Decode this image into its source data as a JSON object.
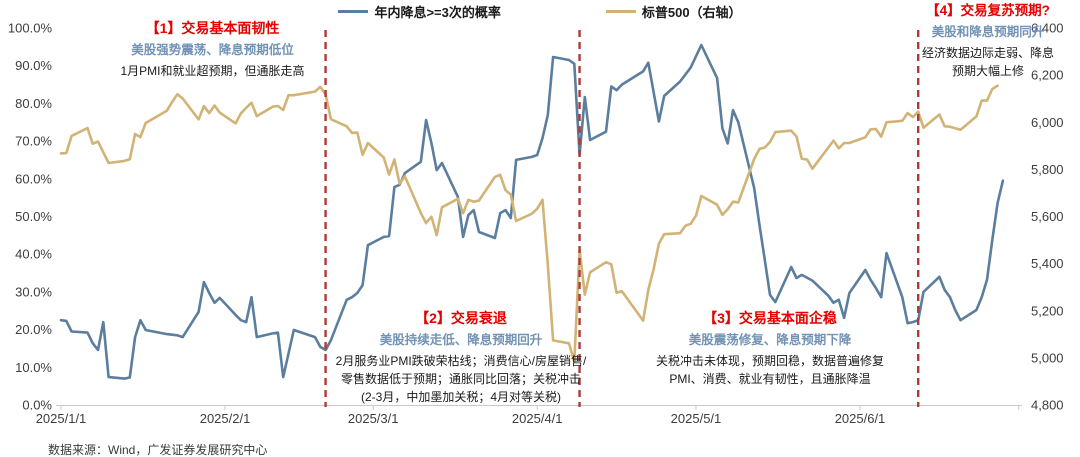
{
  "page": {
    "footer": "数据来源：Wind，广发证券发展研究中心"
  },
  "legend": {
    "items": [
      {
        "label": "年内降息>=3次的概率",
        "color": "#5B7E9E"
      },
      {
        "label": "标普500（右轴）",
        "color": "#D2B376"
      }
    ]
  },
  "annotations": [
    {
      "title": "【1】交易基本面韧性",
      "subtitle": "美股强势震荡、降息预期低位",
      "body": "1月PMI和就业超预期，但通胀走高"
    },
    {
      "title": "【2】交易衰退",
      "subtitle": "美股持续走低、降息预期回升",
      "body": "2月服务业PMI跌破荣枯线；消费信心/房屋销售/\n零售数据低于预期；通胀同比回落；关税冲击\n(2-3月，中加墨加关税；4月对等关税)"
    },
    {
      "title": "【3】交易基本面企稳",
      "subtitle": "美股震荡修复、降息预期下降",
      "body": "关税冲击未体现，预期回稳，数据普遍修复\nPMI、消费、就业有韧性，且通胀降温"
    },
    {
      "title": "【4】交易复苏预期?",
      "subtitle": "美股和降息预期同升",
      "body": "经济数据边际走弱、降息\n预期大幅上修"
    }
  ],
  "chart_data": {
    "type": "line",
    "grid": false,
    "legend_position": "top-center",
    "x_axis": {
      "ticks": [
        {
          "label": "2025/1/1",
          "date": "2025-01-01"
        },
        {
          "label": "2025/2/1",
          "date": "2025-02-01"
        },
        {
          "label": "2025/3/1",
          "date": "2025-03-01"
        },
        {
          "label": "2025/4/1",
          "date": "2025-04-01"
        },
        {
          "label": "2025/5/1",
          "date": "2025-05-01"
        },
        {
          "label": "2025/6/1",
          "date": "2025-06-01"
        }
      ],
      "range_days": [
        0,
        181
      ]
    },
    "y_left": {
      "ticks": [
        "0.0%",
        "10.0%",
        "20.0%",
        "30.0%",
        "40.0%",
        "50.0%",
        "60.0%",
        "70.0%",
        "80.0%",
        "90.0%",
        "100.0%"
      ],
      "min": 0,
      "max": 100
    },
    "y_right": {
      "ticks": [
        "4,800",
        "5,000",
        "5,200",
        "5,400",
        "5,600",
        "5,800",
        "6,000",
        "6,200",
        "6,400"
      ],
      "min": 4800,
      "max": 6400
    },
    "phase_dividers": {
      "color": "#B03A35",
      "dates": [
        "2025-02-20",
        "2025-04-09",
        "2025-06-12"
      ]
    },
    "series": [
      {
        "name": "年内降息>=3次的概率",
        "axis": "left",
        "color": "#5B7E9E",
        "points": [
          [
            "2025-01-01",
            22.5
          ],
          [
            "2025-01-02",
            22.3
          ],
          [
            "2025-01-03",
            19.5
          ],
          [
            "2025-01-06",
            19.2
          ],
          [
            "2025-01-07",
            16.4
          ],
          [
            "2025-01-08",
            14.6
          ],
          [
            "2025-01-09",
            22.0
          ],
          [
            "2025-01-10",
            7.4
          ],
          [
            "2025-01-13",
            7.0
          ],
          [
            "2025-01-14",
            7.3
          ],
          [
            "2025-01-15",
            18.0
          ],
          [
            "2025-01-16",
            22.5
          ],
          [
            "2025-01-17",
            19.9
          ],
          [
            "2025-01-21",
            18.8
          ],
          [
            "2025-01-23",
            18.5
          ],
          [
            "2025-01-24",
            18.0
          ],
          [
            "2025-01-27",
            24.7
          ],
          [
            "2025-01-28",
            32.6
          ],
          [
            "2025-01-29",
            29.7
          ],
          [
            "2025-01-30",
            27.1
          ],
          [
            "2025-01-31",
            28.4
          ],
          [
            "2025-02-03",
            23.9
          ],
          [
            "2025-02-04",
            22.5
          ],
          [
            "2025-02-05",
            22.0
          ],
          [
            "2025-02-06",
            28.6
          ],
          [
            "2025-02-07",
            18.0
          ],
          [
            "2025-02-10",
            19.0
          ],
          [
            "2025-02-11",
            19.2
          ],
          [
            "2025-02-12",
            7.4
          ],
          [
            "2025-02-14",
            19.9
          ],
          [
            "2025-02-18",
            18.0
          ],
          [
            "2025-02-19",
            15.4
          ],
          [
            "2025-02-20",
            14.6
          ],
          [
            "2025-02-21",
            17.2
          ],
          [
            "2025-02-24",
            27.9
          ],
          [
            "2025-02-25",
            28.6
          ],
          [
            "2025-02-26",
            29.7
          ],
          [
            "2025-02-27",
            31.8
          ],
          [
            "2025-02-28",
            42.4
          ],
          [
            "2025-03-03",
            44.6
          ],
          [
            "2025-03-04",
            44.8
          ],
          [
            "2025-03-05",
            57.8
          ],
          [
            "2025-03-06",
            58.4
          ],
          [
            "2025-03-07",
            61.5
          ],
          [
            "2025-03-10",
            64.5
          ],
          [
            "2025-03-11",
            75.6
          ],
          [
            "2025-03-12",
            69.5
          ],
          [
            "2025-03-13",
            62.3
          ],
          [
            "2025-03-14",
            64.2
          ],
          [
            "2025-03-17",
            55.2
          ],
          [
            "2025-03-18",
            44.6
          ],
          [
            "2025-03-19",
            50.4
          ],
          [
            "2025-03-20",
            51.7
          ],
          [
            "2025-03-21",
            45.9
          ],
          [
            "2025-03-24",
            44.3
          ],
          [
            "2025-03-25",
            50.9
          ],
          [
            "2025-03-26",
            51.7
          ],
          [
            "2025-03-27",
            49.6
          ],
          [
            "2025-03-28",
            65.0
          ],
          [
            "2025-03-31",
            65.8
          ],
          [
            "2025-04-01",
            66.3
          ],
          [
            "2025-04-02",
            70.8
          ],
          [
            "2025-04-03",
            76.9
          ],
          [
            "2025-04-04",
            92.3
          ],
          [
            "2025-04-07",
            91.5
          ],
          [
            "2025-04-08",
            90.5
          ],
          [
            "2025-04-09",
            66.3
          ],
          [
            "2025-04-10",
            81.7
          ],
          [
            "2025-04-11",
            70.3
          ],
          [
            "2025-04-14",
            72.5
          ],
          [
            "2025-04-15",
            84.5
          ],
          [
            "2025-04-16",
            83.5
          ],
          [
            "2025-04-17",
            85.0
          ],
          [
            "2025-04-21",
            88.5
          ],
          [
            "2025-04-22",
            90.8
          ],
          [
            "2025-04-24",
            75.2
          ],
          [
            "2025-04-25",
            82.0
          ],
          [
            "2025-04-28",
            85.8
          ],
          [
            "2025-04-30",
            89.5
          ],
          [
            "2025-05-02",
            95.5
          ],
          [
            "2025-05-05",
            86.7
          ],
          [
            "2025-05-06",
            73.4
          ],
          [
            "2025-05-07",
            69.4
          ],
          [
            "2025-05-08",
            78.2
          ],
          [
            "2025-05-09",
            75.0
          ],
          [
            "2025-05-12",
            57.5
          ],
          [
            "2025-05-13",
            47.7
          ],
          [
            "2025-05-14",
            38.5
          ],
          [
            "2025-05-15",
            29.2
          ],
          [
            "2025-05-16",
            27.3
          ],
          [
            "2025-05-19",
            36.6
          ],
          [
            "2025-05-20",
            33.7
          ],
          [
            "2025-05-21",
            34.5
          ],
          [
            "2025-05-23",
            33.0
          ],
          [
            "2025-05-26",
            29.0
          ],
          [
            "2025-05-27",
            27.1
          ],
          [
            "2025-05-28",
            27.9
          ],
          [
            "2025-05-29",
            23.1
          ],
          [
            "2025-05-30",
            29.7
          ],
          [
            "2025-06-02",
            35.8
          ],
          [
            "2025-06-03",
            33.2
          ],
          [
            "2025-06-04",
            31.0
          ],
          [
            "2025-06-05",
            28.6
          ],
          [
            "2025-06-06",
            40.3
          ],
          [
            "2025-06-09",
            28.6
          ],
          [
            "2025-06-10",
            21.7
          ],
          [
            "2025-06-11",
            22.0
          ],
          [
            "2025-06-12",
            22.5
          ],
          [
            "2025-06-13",
            30.0
          ],
          [
            "2025-06-16",
            34.0
          ],
          [
            "2025-06-17",
            30.5
          ],
          [
            "2025-06-18",
            28.6
          ],
          [
            "2025-06-19",
            25.2
          ],
          [
            "2025-06-20",
            22.5
          ],
          [
            "2025-06-23",
            25.2
          ],
          [
            "2025-06-24",
            28.6
          ],
          [
            "2025-06-25",
            33.2
          ],
          [
            "2025-06-26",
            43.8
          ],
          [
            "2025-06-27",
            53.6
          ],
          [
            "2025-06-28",
            59.5
          ]
        ]
      },
      {
        "name": "标普500（右轴）",
        "axis": "right",
        "color": "#D2B376",
        "points": [
          [
            "2025-01-01",
            5868
          ],
          [
            "2025-01-02",
            5869
          ],
          [
            "2025-01-03",
            5942
          ],
          [
            "2025-01-06",
            5975
          ],
          [
            "2025-01-07",
            5909
          ],
          [
            "2025-01-08",
            5918
          ],
          [
            "2025-01-10",
            5827
          ],
          [
            "2025-01-13",
            5836
          ],
          [
            "2025-01-14",
            5843
          ],
          [
            "2025-01-15",
            5950
          ],
          [
            "2025-01-16",
            5937
          ],
          [
            "2025-01-17",
            5997
          ],
          [
            "2025-01-21",
            6049
          ],
          [
            "2025-01-22",
            6086
          ],
          [
            "2025-01-23",
            6119
          ],
          [
            "2025-01-24",
            6101
          ],
          [
            "2025-01-27",
            6012
          ],
          [
            "2025-01-28",
            6068
          ],
          [
            "2025-01-29",
            6039
          ],
          [
            "2025-01-30",
            6071
          ],
          [
            "2025-01-31",
            6041
          ],
          [
            "2025-02-03",
            5995
          ],
          [
            "2025-02-04",
            6038
          ],
          [
            "2025-02-05",
            6061
          ],
          [
            "2025-02-06",
            6083
          ],
          [
            "2025-02-07",
            6026
          ],
          [
            "2025-02-10",
            6066
          ],
          [
            "2025-02-11",
            6069
          ],
          [
            "2025-02-12",
            6052
          ],
          [
            "2025-02-13",
            6115
          ],
          [
            "2025-02-14",
            6115
          ],
          [
            "2025-02-18",
            6130
          ],
          [
            "2025-02-19",
            6150
          ],
          [
            "2025-02-20",
            6118
          ],
          [
            "2025-02-21",
            6013
          ],
          [
            "2025-02-24",
            5983
          ],
          [
            "2025-02-25",
            5955
          ],
          [
            "2025-02-26",
            5956
          ],
          [
            "2025-02-27",
            5862
          ],
          [
            "2025-02-28",
            5912
          ],
          [
            "2025-03-03",
            5850
          ],
          [
            "2025-03-04",
            5778
          ],
          [
            "2025-03-05",
            5842
          ],
          [
            "2025-03-06",
            5739
          ],
          [
            "2025-03-07",
            5770
          ],
          [
            "2025-03-10",
            5615
          ],
          [
            "2025-03-11",
            5572
          ],
          [
            "2025-03-12",
            5599
          ],
          [
            "2025-03-13",
            5521
          ],
          [
            "2025-03-14",
            5639
          ],
          [
            "2025-03-17",
            5675
          ],
          [
            "2025-03-18",
            5614
          ],
          [
            "2025-03-19",
            5671
          ],
          [
            "2025-03-20",
            5663
          ],
          [
            "2025-03-21",
            5668
          ],
          [
            "2025-03-24",
            5768
          ],
          [
            "2025-03-25",
            5777
          ],
          [
            "2025-03-26",
            5712
          ],
          [
            "2025-03-27",
            5693
          ],
          [
            "2025-03-28",
            5581
          ],
          [
            "2025-03-31",
            5612
          ],
          [
            "2025-04-01",
            5633
          ],
          [
            "2025-04-02",
            5671
          ],
          [
            "2025-04-03",
            5396
          ],
          [
            "2025-04-04",
            5074
          ],
          [
            "2025-04-07",
            5062
          ],
          [
            "2025-04-08",
            4983
          ],
          [
            "2025-04-09",
            5457
          ],
          [
            "2025-04-10",
            5268
          ],
          [
            "2025-04-11",
            5363
          ],
          [
            "2025-04-14",
            5406
          ],
          [
            "2025-04-15",
            5397
          ],
          [
            "2025-04-16",
            5276
          ],
          [
            "2025-04-17",
            5283
          ],
          [
            "2025-04-21",
            5158
          ],
          [
            "2025-04-22",
            5288
          ],
          [
            "2025-04-23",
            5376
          ],
          [
            "2025-04-24",
            5485
          ],
          [
            "2025-04-25",
            5525
          ],
          [
            "2025-04-28",
            5529
          ],
          [
            "2025-04-29",
            5561
          ],
          [
            "2025-04-30",
            5569
          ],
          [
            "2025-05-01",
            5604
          ],
          [
            "2025-05-02",
            5687
          ],
          [
            "2025-05-05",
            5650
          ],
          [
            "2025-05-06",
            5607
          ],
          [
            "2025-05-07",
            5631
          ],
          [
            "2025-05-08",
            5663
          ],
          [
            "2025-05-09",
            5660
          ],
          [
            "2025-05-12",
            5844
          ],
          [
            "2025-05-13",
            5887
          ],
          [
            "2025-05-14",
            5893
          ],
          [
            "2025-05-15",
            5916
          ],
          [
            "2025-05-16",
            5958
          ],
          [
            "2025-05-19",
            5964
          ],
          [
            "2025-05-20",
            5940
          ],
          [
            "2025-05-21",
            5845
          ],
          [
            "2025-05-22",
            5842
          ],
          [
            "2025-05-23",
            5803
          ],
          [
            "2025-05-27",
            5922
          ],
          [
            "2025-05-28",
            5889
          ],
          [
            "2025-05-29",
            5912
          ],
          [
            "2025-05-30",
            5912
          ],
          [
            "2025-06-02",
            5936
          ],
          [
            "2025-06-03",
            5970
          ],
          [
            "2025-06-04",
            5971
          ],
          [
            "2025-06-05",
            5939
          ],
          [
            "2025-06-06",
            6000
          ],
          [
            "2025-06-09",
            6006
          ],
          [
            "2025-06-10",
            6039
          ],
          [
            "2025-06-11",
            6022
          ],
          [
            "2025-06-12",
            6045
          ],
          [
            "2025-06-13",
            5977
          ],
          [
            "2025-06-16",
            6033
          ],
          [
            "2025-06-17",
            5983
          ],
          [
            "2025-06-18",
            5981
          ],
          [
            "2025-06-20",
            5968
          ],
          [
            "2025-06-23",
            6025
          ],
          [
            "2025-06-24",
            6092
          ],
          [
            "2025-06-25",
            6092
          ],
          [
            "2025-06-26",
            6141
          ],
          [
            "2025-06-27",
            6155
          ]
        ]
      }
    ]
  }
}
